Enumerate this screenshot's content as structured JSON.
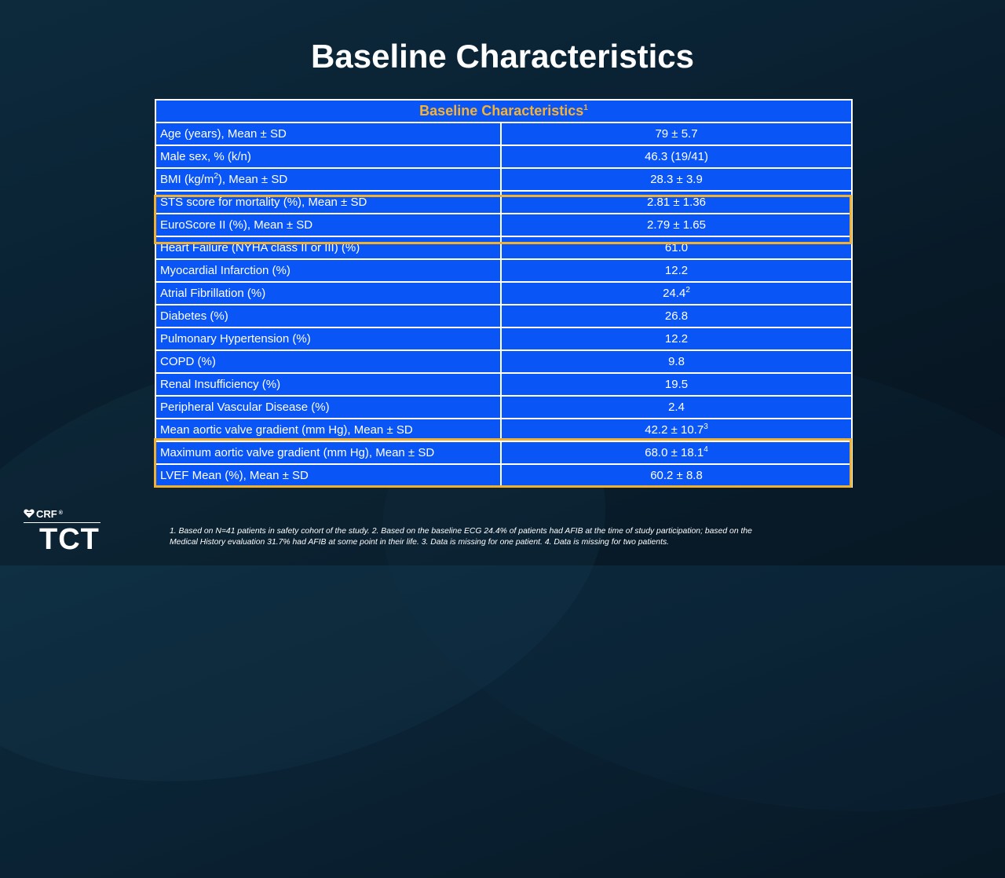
{
  "slide": {
    "title": "Baseline Characteristics"
  },
  "table": {
    "header": "Baseline Characteristics",
    "header_sup": "1",
    "rows": [
      {
        "pre": "Age (years), Mean ± SD",
        "value": "79 ± 5.7"
      },
      {
        "pre": "Male sex, % (k/n)",
        "value": "46.3 (19/41)"
      },
      {
        "pre": "BMI (kg/m",
        "sup": "2",
        "post": "), Mean ± SD",
        "value": "28.3 ± 3.9"
      },
      {
        "pre": "STS score for mortality (%), Mean ± SD",
        "value": "2.81 ± 1.36"
      },
      {
        "pre": "EuroScore II (%), Mean ± SD",
        "value": "2.79 ± 1.65"
      },
      {
        "pre": "Heart Failure (NYHA class II or III) (%)",
        "value": "61.0"
      },
      {
        "pre": "Myocardial Infarction (%)",
        "value": "12.2"
      },
      {
        "pre": "Atrial Fibrillation (%)",
        "value": "24.4",
        "value_sup": "2"
      },
      {
        "pre": "Diabetes (%)",
        "value": "26.8"
      },
      {
        "pre": "Pulmonary Hypertension (%)",
        "value": "12.2"
      },
      {
        "pre": "COPD (%)",
        "value": "9.8"
      },
      {
        "pre": "Renal Insufficiency (%)",
        "value": "19.5"
      },
      {
        "pre": "Peripheral Vascular Disease (%)",
        "value": "2.4"
      },
      {
        "pre": "Mean aortic valve gradient (mm Hg), Mean ± SD",
        "value": "42.2 ± 10.7",
        "value_sup": "3"
      },
      {
        "pre": "Maximum aortic valve gradient (mm Hg), Mean ± SD",
        "value": "68.0 ± 18.1",
        "value_sup": "4"
      },
      {
        "pre": "LVEF Mean (%), Mean ± SD",
        "value": "60.2 ± 8.8"
      }
    ]
  },
  "footnote": "1. Based on N=41 patients in safety cohort of the study. 2. Based on the baseline ECG 24.4% of patients had AFIB at the time of study participation; based on the Medical History evaluation 31.7% had AFIB at some point in their life. 3. Data is missing for one patient. 4. Data is missing for two patients.",
  "logo": {
    "crf": "CRF",
    "crf_mark": "®",
    "tct": "TCT",
    "icon": "heart-icon"
  },
  "colors": {
    "table_bg": "#0a55f5",
    "header_text": "#f5b335",
    "highlight_border": "#f0b030"
  }
}
